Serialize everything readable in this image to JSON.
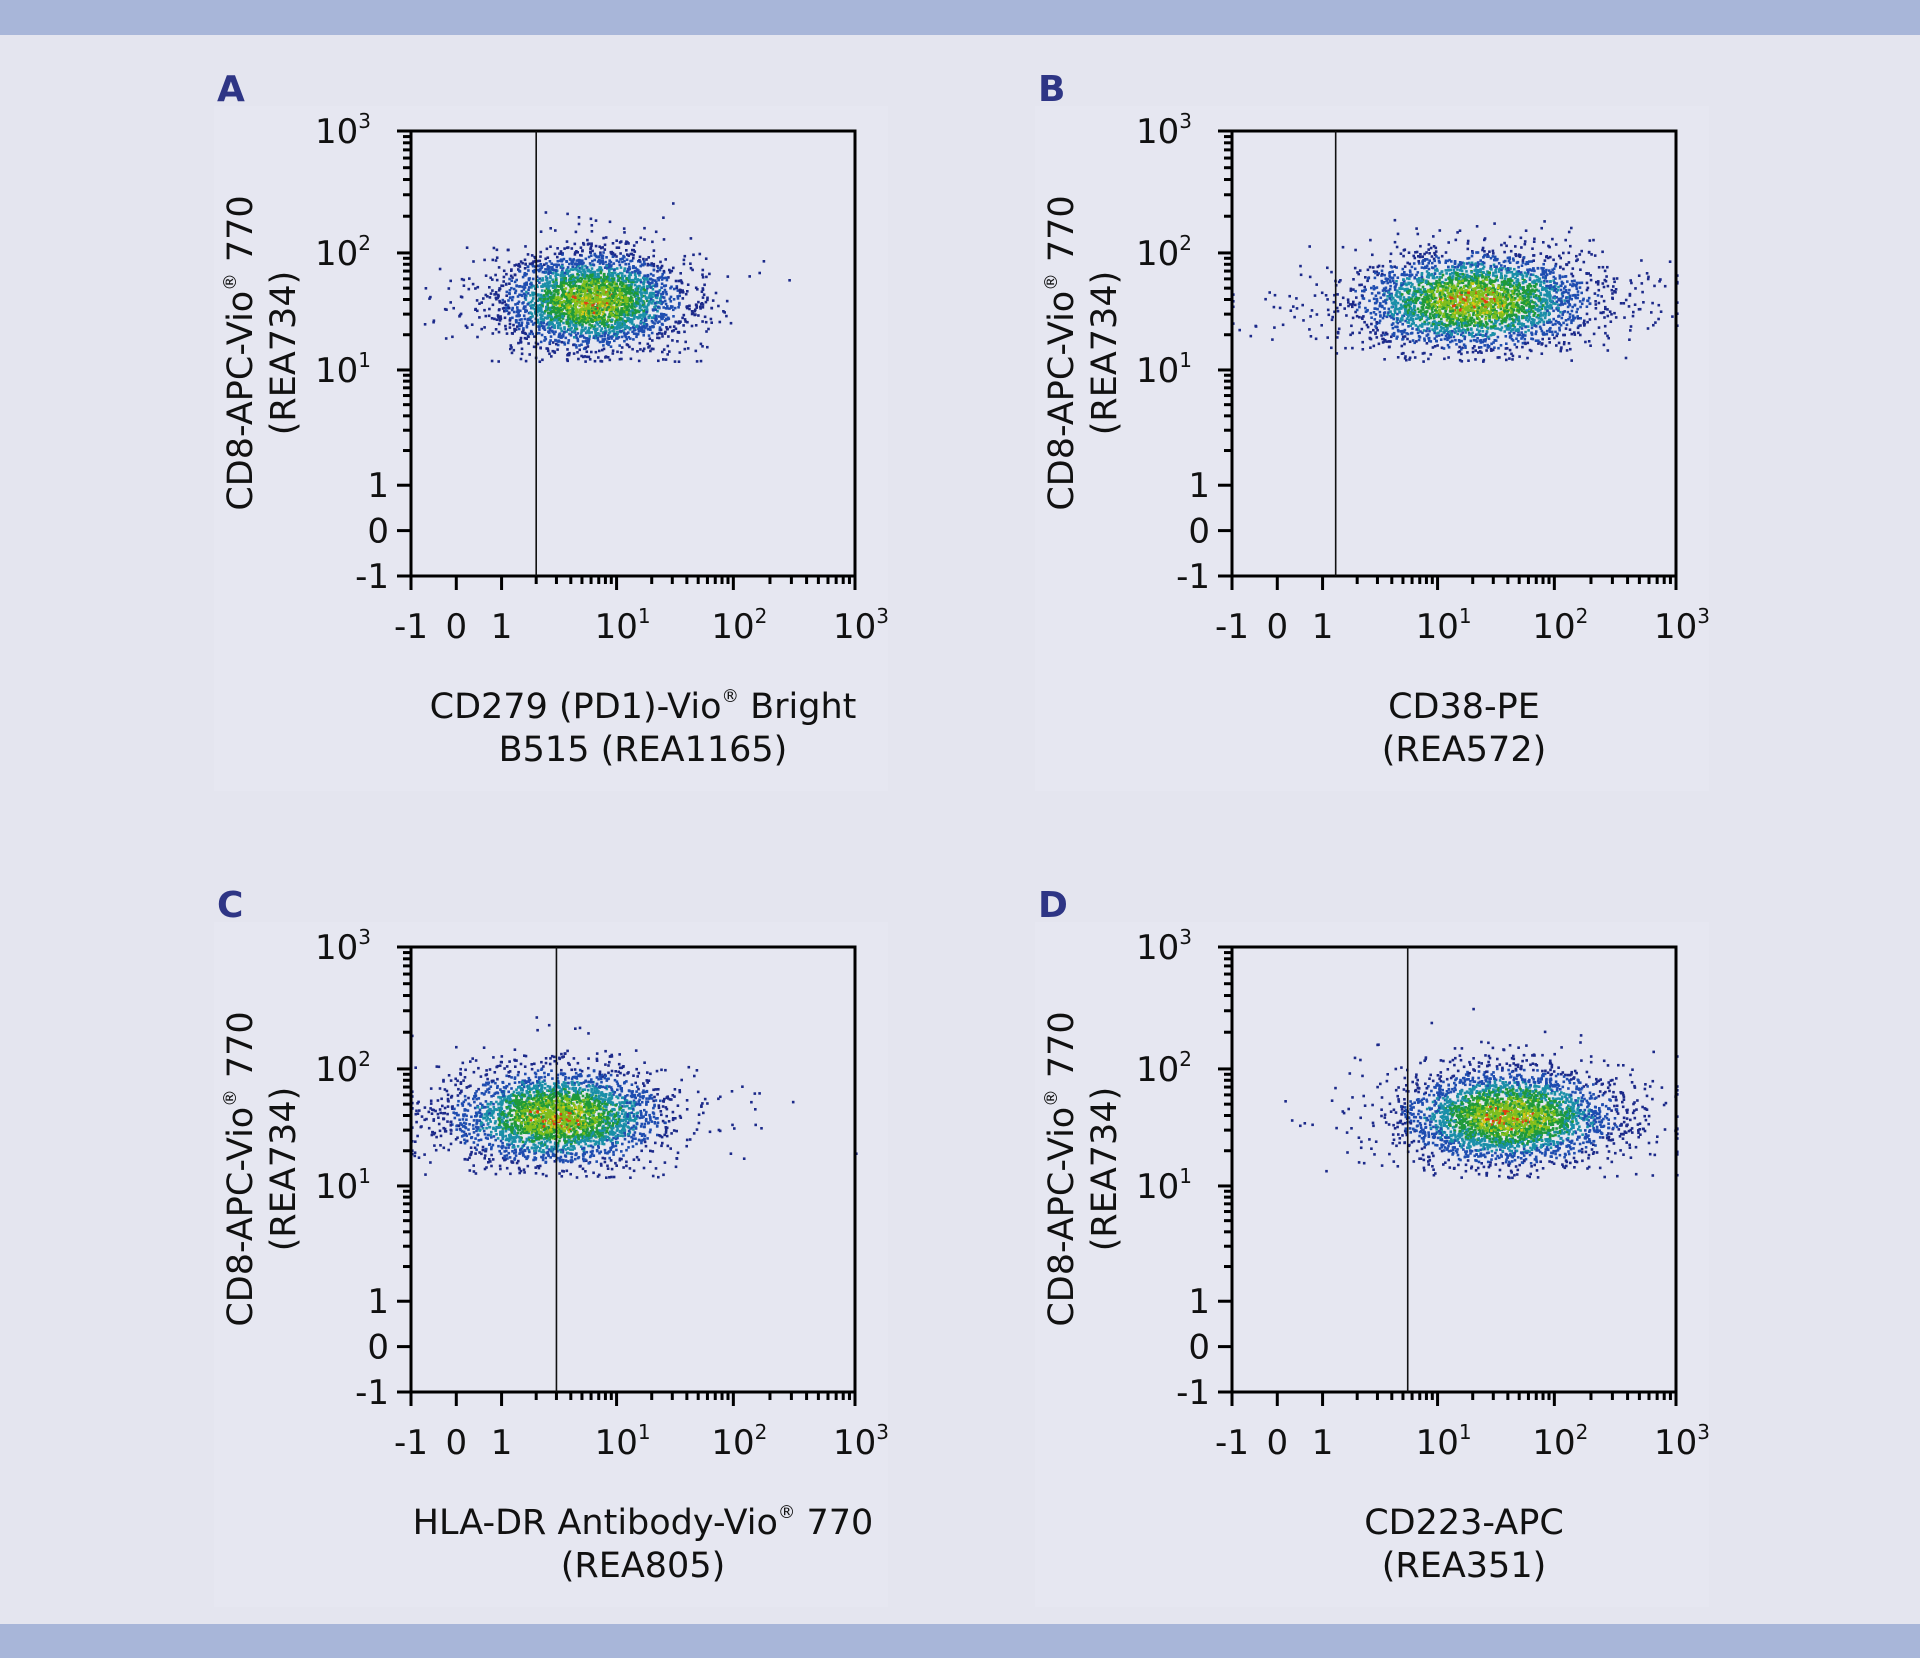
{
  "colors": {
    "band": "#a8b6d9",
    "background": "#e4e5ef",
    "panel_letter": "#2e3585",
    "density_low": "#1a2a8c",
    "density_high": "#e04010"
  },
  "chart_data": [
    {
      "type": "scatter",
      "panel": "A",
      "xlabel": {
        "line1": "CD279 (PD1)-Vio",
        "reg": "®",
        "line1b": " Bright",
        "line2": "B515 (REA1165)"
      },
      "ylabel": {
        "line1": "CD8-APC-Vio",
        "reg": "®",
        "line1b": " 770",
        "line2": "(REA734)"
      },
      "gate_x": 2,
      "population": {
        "x_center": 6,
        "x_spread_decades": 0.38,
        "y_center": 40,
        "y_spread_decades": 0.2,
        "y_min": 12
      }
    },
    {
      "type": "scatter",
      "panel": "B",
      "xlabel": {
        "line1": "CD38-PE",
        "reg": "",
        "line1b": "",
        "line2": "(REA572)"
      },
      "ylabel": {
        "line1": "CD8-APC-Vio",
        "reg": "®",
        "line1b": " 770",
        "line2": "(REA734)"
      },
      "gate_x": 1.3,
      "population": {
        "x_center": 20,
        "x_spread_decades": 0.5,
        "y_center": 40,
        "y_spread_decades": 0.2,
        "y_min": 12
      }
    },
    {
      "type": "scatter",
      "panel": "C",
      "xlabel": {
        "line1": "HLA-DR Antibody-Vio",
        "reg": "®",
        "line1b": " 770",
        "line2": "(REA805)"
      },
      "ylabel": {
        "line1": "CD8-APC-Vio",
        "reg": "®",
        "line1b": " 770",
        "line2": "(REA734)"
      },
      "gate_x": 3,
      "population": {
        "x_center": 3,
        "x_spread_decades": 0.45,
        "y_center": 40,
        "y_spread_decades": 0.2,
        "y_min": 12
      }
    },
    {
      "type": "scatter",
      "panel": "D",
      "xlabel": {
        "line1": "CD223-APC",
        "reg": "",
        "line1b": "",
        "line2": "(REA351)"
      },
      "ylabel": {
        "line1": "CD8-APC-Vio",
        "reg": "®",
        "line1b": " 770",
        "line2": "(REA734)"
      },
      "gate_x": 5.5,
      "population": {
        "x_center": 40,
        "x_spread_decades": 0.45,
        "y_center": 40,
        "y_spread_decades": 0.2,
        "y_min": 12
      }
    }
  ],
  "axes": {
    "scale": "biexponential",
    "xlim": [
      -1,
      1000
    ],
    "ylim": [
      -1,
      1000
    ],
    "ticks": [
      {
        "value": -1,
        "base": "-1",
        "exp": ""
      },
      {
        "value": 0,
        "base": "0",
        "exp": ""
      },
      {
        "value": 1,
        "base": "1",
        "exp": ""
      },
      {
        "value": 10,
        "base": "10",
        "exp": "1"
      },
      {
        "value": 100,
        "base": "10",
        "exp": "2"
      },
      {
        "value": 1000,
        "base": "10",
        "exp": "3"
      }
    ]
  }
}
